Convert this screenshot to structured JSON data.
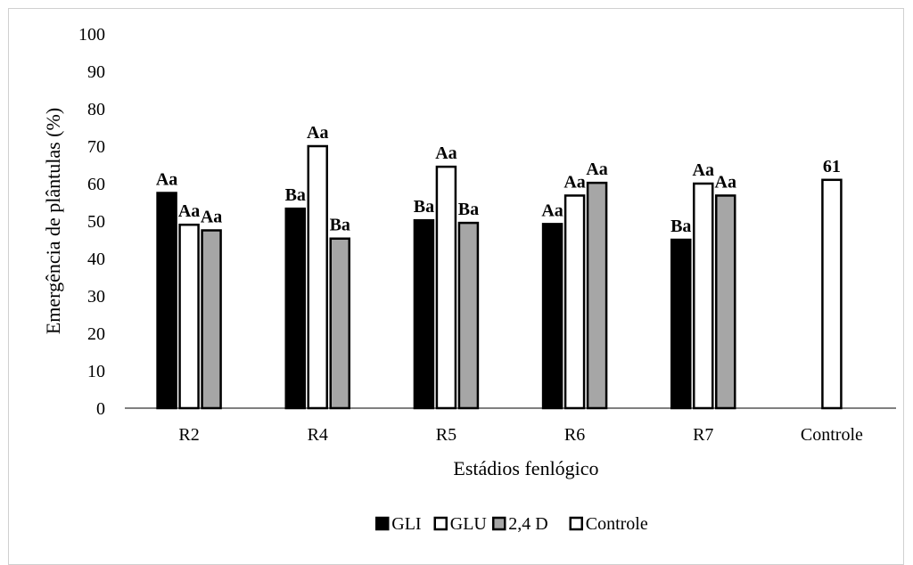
{
  "chart_data": {
    "type": "bar",
    "title": "",
    "xlabel": "Estádios fenlógico",
    "ylabel": "Emergência de plântulas (%)",
    "ylim": [
      0,
      100
    ],
    "yticks": [
      "0",
      "10",
      "20",
      "30",
      "40",
      "50",
      "60",
      "70",
      "80",
      "90",
      "100"
    ],
    "categories": [
      "R2",
      "R4",
      "R5",
      "R6",
      "R7",
      "Controle"
    ],
    "grid": false,
    "legend_position": "bottom",
    "series": [
      {
        "name": "GLI",
        "color": "#000000",
        "values": [
          57.5,
          53.3,
          50.2,
          49.2,
          45.0,
          null
        ],
        "labels": [
          "Aa",
          "Ba",
          "Ba",
          "Aa",
          "Ba",
          null
        ]
      },
      {
        "name": "GLU",
        "color": "#ffffff",
        "values": [
          49.0,
          70.0,
          64.5,
          56.8,
          60.0,
          null
        ],
        "labels": [
          "Aa",
          "Aa",
          "Aa",
          "Aa",
          "Aa",
          null
        ]
      },
      {
        "name": "2,4 D",
        "color": "#a6a6a6",
        "values": [
          47.5,
          45.3,
          49.5,
          60.2,
          56.8,
          null
        ],
        "labels": [
          "Aa",
          "Ba",
          "Ba",
          "Aa",
          "Aa",
          null
        ]
      },
      {
        "name": "Controle",
        "color": "#ffffff",
        "values": [
          null,
          null,
          null,
          null,
          null,
          61
        ],
        "labels": [
          null,
          null,
          null,
          null,
          null,
          "61"
        ]
      }
    ]
  }
}
